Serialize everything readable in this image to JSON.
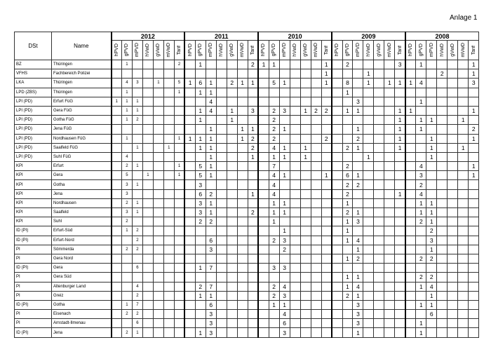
{
  "annex_label": "Anlage 1",
  "headers": {
    "dst": "DSt",
    "name": "Name",
    "years": [
      "2012",
      "2011",
      "2010",
      "2009",
      "2008"
    ],
    "columns": [
      "hPVD",
      "gPVD",
      "mPVD",
      "hVwD",
      "gVwD",
      "mVwD",
      "Tarif"
    ]
  },
  "rows": [
    {
      "dst": "BZ",
      "name": "Thüringen",
      "values": [
        [
          "",
          "1",
          "",
          "",
          "",
          "",
          "2"
        ],
        [
          "",
          "1",
          "",
          "",
          "",
          "",
          "2"
        ],
        [
          "1",
          "1",
          "",
          "",
          "",
          "",
          "1"
        ],
        [
          "",
          "2",
          "",
          "",
          "",
          "",
          "3"
        ],
        [
          "",
          "1",
          "",
          "",
          "",
          "",
          "1"
        ]
      ]
    },
    {
      "dst": "VFHS",
      "name": "Fachbereich Polizei",
      "values": [
        [],
        [],
        [
          "",
          "",
          "",
          "",
          "",
          "",
          "1"
        ],
        [
          "",
          "",
          "",
          "1",
          "",
          "",
          ""
        ],
        [
          "",
          "",
          "",
          "2",
          "",
          "",
          "1"
        ]
      ]
    },
    {
      "dst": "LKA",
      "name": "Thüringen",
      "values": [
        [
          "",
          "4",
          "3",
          "",
          "1",
          "",
          "5"
        ],
        [
          "1",
          "6",
          "1",
          "",
          "2",
          "1",
          "1"
        ],
        [
          "",
          "5",
          "1",
          "",
          "",
          "",
          "1"
        ],
        [
          "",
          "8",
          "",
          "1",
          "",
          "1",
          "1"
        ],
        [
          "1",
          "4",
          "",
          "",
          "",
          "",
          "3"
        ]
      ]
    },
    {
      "dst": "LPD (ZBS)",
      "name": "Thüringen",
      "values": [
        [
          "",
          "1",
          "",
          "",
          "",
          "",
          "1"
        ],
        [
          "",
          "1",
          "1"
        ],
        [],
        [
          "",
          "1"
        ],
        []
      ]
    },
    {
      "dst": "LPI (PD)",
      "name": "Erfurt FüG",
      "values": [
        [
          "1",
          "1",
          "1"
        ],
        [
          "",
          "",
          "4"
        ],
        [],
        [
          "",
          "",
          "3"
        ],
        [
          "",
          "1"
        ]
      ]
    },
    {
      "dst": "LPI (PD)",
      "name": "Gera FüG",
      "values": [
        [
          "",
          "1",
          "1"
        ],
        [
          "",
          "1",
          "4",
          "",
          "1",
          "",
          "3"
        ],
        [
          "",
          "2",
          "3",
          "",
          "1",
          "2",
          "2"
        ],
        [
          "",
          "1",
          "1",
          "",
          "",
          "",
          "1"
        ],
        [
          "1",
          "",
          "",
          "",
          "",
          "",
          "1"
        ]
      ]
    },
    {
      "dst": "LPI (PD)",
      "name": "Gotha FüG",
      "values": [
        [
          "",
          "1",
          "2"
        ],
        [
          "",
          "1",
          "",
          "",
          "1"
        ],
        [
          "",
          "2"
        ],
        [
          "",
          "",
          "",
          "",
          "",
          "",
          "1"
        ],
        [
          "",
          "1",
          "1",
          "",
          "",
          "1"
        ]
      ]
    },
    {
      "dst": "LPI (PD)",
      "name": "Jena FüG",
      "values": [
        [],
        [
          "",
          "",
          "1",
          "",
          "",
          "1",
          "1"
        ],
        [
          "",
          "2",
          "1"
        ],
        [
          "",
          "",
          "1",
          "",
          "",
          "",
          "1"
        ],
        [
          "",
          "1",
          "",
          "",
          "",
          "",
          "2"
        ]
      ]
    },
    {
      "dst": "LPI (PD)",
      "name": "Nordhausen FüG",
      "values": [
        [
          "",
          "1",
          "",
          "",
          "",
          "",
          "1"
        ],
        [
          "1",
          "1",
          "1",
          "",
          "",
          "1",
          "2"
        ],
        [
          "",
          "2",
          "",
          "",
          "",
          "",
          "2"
        ],
        [
          "",
          "",
          "2",
          "",
          "",
          "",
          "1"
        ],
        [
          "",
          "",
          "1",
          "",
          "",
          "",
          "1"
        ]
      ]
    },
    {
      "dst": "LPI (PD)",
      "name": "Saalfeld FüG",
      "values": [
        [
          "",
          "",
          "1",
          "",
          "",
          "1"
        ],
        [
          "",
          "1",
          "1",
          "",
          "",
          "",
          "2"
        ],
        [
          "",
          "4",
          "1",
          "",
          "1"
        ],
        [
          "",
          "2",
          "1",
          "",
          "",
          "",
          "1"
        ],
        [
          "",
          "",
          "1",
          "",
          "",
          "1"
        ]
      ]
    },
    {
      "dst": "LPI (PD)",
      "name": "Suhl FüG",
      "values": [
        [
          "",
          "4"
        ],
        [
          "",
          "",
          "1",
          "",
          "",
          "",
          "1"
        ],
        [
          "",
          "1",
          "1",
          "",
          "1"
        ],
        [
          "",
          "",
          "",
          "1"
        ],
        [
          "",
          "",
          "1"
        ]
      ]
    },
    {
      "dst": "KPI",
      "name": "Erfurt",
      "values": [
        [
          "",
          "2",
          "1",
          "",
          "",
          "",
          "1"
        ],
        [
          "",
          "5",
          "1"
        ],
        [
          "",
          "7"
        ],
        [
          "",
          "2"
        ],
        [
          "",
          "4",
          "",
          "",
          "",
          "",
          "1"
        ]
      ]
    },
    {
      "dst": "KPI",
      "name": "Gera",
      "values": [
        [
          "",
          "5",
          "",
          "1",
          "",
          "",
          "1"
        ],
        [
          "",
          "5",
          "1"
        ],
        [
          "",
          "4",
          "1",
          "",
          "",
          "",
          "1"
        ],
        [
          "",
          "6",
          "1"
        ],
        [
          "",
          "3",
          "",
          "",
          "",
          "",
          "1"
        ]
      ]
    },
    {
      "dst": "KPI",
      "name": "Gotha",
      "values": [
        [
          "",
          "3",
          "1"
        ],
        [
          "",
          "3"
        ],
        [
          "",
          "4"
        ],
        [
          "",
          "2",
          "2"
        ],
        [
          "",
          "2"
        ]
      ]
    },
    {
      "dst": "KPI",
      "name": "Jena",
      "values": [
        [
          "",
          "3"
        ],
        [
          "",
          "6",
          "2",
          "",
          "",
          "",
          "1"
        ],
        [
          "",
          "4"
        ],
        [
          "",
          "2",
          "",
          "",
          "",
          "",
          "1"
        ],
        [
          "",
          "4"
        ]
      ]
    },
    {
      "dst": "KPI",
      "name": "Nordhausen",
      "values": [
        [
          "",
          "2",
          "1"
        ],
        [
          "",
          "3",
          "1"
        ],
        [
          "",
          "1",
          "1"
        ],
        [
          "",
          "1"
        ],
        [
          "",
          "1",
          "1"
        ]
      ]
    },
    {
      "dst": "KPI",
      "name": "Saalfeld",
      "values": [
        [
          "",
          "3",
          "1"
        ],
        [
          "",
          "3",
          "1",
          "",
          "",
          "",
          "2"
        ],
        [
          "",
          "1",
          "1"
        ],
        [
          "",
          "2",
          "1"
        ],
        [
          "",
          "1",
          "1"
        ]
      ]
    },
    {
      "dst": "KPI",
      "name": "Suhl",
      "values": [
        [
          "",
          "2"
        ],
        [
          "",
          "2",
          "2"
        ],
        [
          "",
          "1"
        ],
        [
          "",
          "1",
          "3"
        ],
        [
          "",
          "2",
          "1"
        ]
      ]
    },
    {
      "dst": "ID (PI)",
      "name": "Erfurt-Süd",
      "values": [
        [
          "",
          "1",
          "2"
        ],
        [],
        [
          "",
          "",
          "1"
        ],
        [
          "",
          "1"
        ],
        [
          "",
          "",
          "2"
        ]
      ]
    },
    {
      "dst": "ID (PI)",
      "name": "Erfurt-Nord",
      "values": [
        [
          "",
          "",
          "2"
        ],
        [
          "",
          "",
          "6"
        ],
        [
          "",
          "2",
          "3"
        ],
        [
          "",
          "1",
          "4"
        ],
        [
          "",
          "",
          "3"
        ]
      ]
    },
    {
      "dst": "PI",
      "name": "Sömmerda",
      "values": [
        [
          "",
          "2",
          "2"
        ],
        [
          "",
          "",
          "3"
        ],
        [
          "",
          "",
          "2"
        ],
        [
          "",
          "",
          "1"
        ],
        [
          "",
          "",
          "1"
        ]
      ]
    },
    {
      "dst": "PI",
      "name": "Gera Nord",
      "values": [
        [],
        [],
        [],
        [
          "",
          "1",
          "2"
        ],
        [
          "",
          "2",
          "2"
        ]
      ]
    },
    {
      "dst": "ID (PI)",
      "name": "Gera",
      "values": [
        [
          "",
          "",
          "6"
        ],
        [
          "",
          "1",
          "7"
        ],
        [
          "",
          "3",
          "3"
        ],
        [],
        []
      ]
    },
    {
      "dst": "PI",
      "name": "Gera Süd",
      "values": [
        [],
        [],
        [],
        [
          "",
          "1",
          "1"
        ],
        [
          "",
          "2",
          "2"
        ]
      ]
    },
    {
      "dst": "PI",
      "name": "Altenburger Land",
      "values": [
        [
          "",
          "",
          "4"
        ],
        [
          "",
          "2",
          "7"
        ],
        [
          "",
          "2",
          "4"
        ],
        [
          "",
          "1",
          "4"
        ],
        [
          "",
          "1",
          "4"
        ]
      ]
    },
    {
      "dst": "PI",
      "name": "Greiz",
      "values": [
        [
          "",
          "",
          "2"
        ],
        [
          "",
          "1",
          "1"
        ],
        [
          "",
          "2",
          "3"
        ],
        [
          "",
          "2",
          "1"
        ],
        [
          "",
          "",
          "1"
        ]
      ]
    },
    {
      "dst": "ID (PI)",
      "name": "Gotha",
      "values": [
        [
          "",
          "1",
          "7"
        ],
        [
          "",
          "",
          "6"
        ],
        [
          "",
          "1",
          "1"
        ],
        [
          "",
          "",
          "3"
        ],
        [
          "",
          "1",
          "1"
        ]
      ]
    },
    {
      "dst": "PI",
      "name": "Eisenach",
      "values": [
        [
          "",
          "2",
          "2"
        ],
        [
          "",
          "",
          "3"
        ],
        [
          "",
          "",
          "4"
        ],
        [
          "",
          "",
          "3"
        ],
        [
          "",
          "",
          "6"
        ]
      ]
    },
    {
      "dst": "PI",
      "name": "Arnstadt-Ilmenau",
      "values": [
        [
          "",
          "",
          "6"
        ],
        [
          "",
          "",
          "3"
        ],
        [
          "",
          "",
          "6"
        ],
        [
          "",
          "",
          "3"
        ],
        [
          "",
          "1"
        ]
      ]
    },
    {
      "dst": "ID (PI)",
      "name": "Jena",
      "values": [
        [
          "",
          "2",
          "1"
        ],
        [
          "",
          "1",
          "3"
        ],
        [
          "",
          "",
          "3"
        ],
        [
          "",
          "",
          "1"
        ],
        [
          "",
          "1"
        ]
      ]
    }
  ]
}
